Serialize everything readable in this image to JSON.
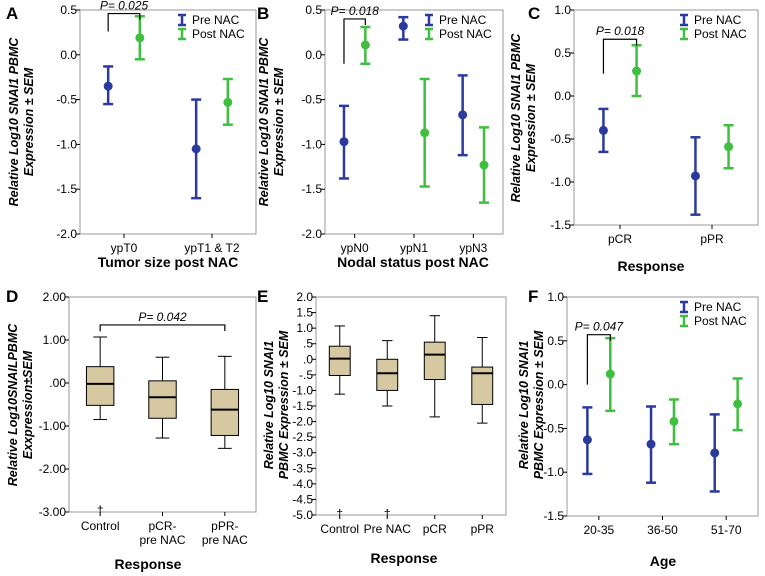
{
  "colors": {
    "pre": "#2b3a9c",
    "post": "#3fbf3f",
    "box": "#d6c9a2",
    "frame": "#999999"
  },
  "chart_data": [
    {
      "panel": "A",
      "type": "errorbar",
      "ylabel": [
        "Relative Log10 SNAI1 PBMC",
        "Expression ± SEM"
      ],
      "xlabel": "Tumor size post NAC",
      "categories": [
        "ypT0",
        "ypT1 & T2"
      ],
      "ylim": [
        -2.0,
        0.5
      ],
      "yticks": [
        0.5,
        0.0,
        -0.5,
        -1.0,
        -1.5,
        -2.0
      ],
      "ytick_labels": [
        "0.5",
        "0.0",
        "-0.5",
        "-1.0",
        "-1.5",
        "-2.0"
      ],
      "legend": [
        "Pre NAC",
        "Post NAC"
      ],
      "legend_position": "top-right",
      "series": [
        {
          "name": "Pre NAC",
          "mean": [
            -0.35,
            -1.05
          ],
          "low": [
            -0.55,
            -1.6
          ],
          "high": [
            -0.13,
            -0.5
          ]
        },
        {
          "name": "Post NAC",
          "mean": [
            0.19,
            -0.53
          ],
          "low": [
            -0.05,
            -0.78
          ],
          "high": [
            0.43,
            -0.27
          ]
        }
      ],
      "annotation": {
        "text": "P= 0.025",
        "from_cat": 0,
        "to_cat": 0,
        "y": 0.46,
        "drop": 0.2
      }
    },
    {
      "panel": "B",
      "type": "errorbar",
      "ylabel": [
        "Relative Log10 SNAI1 PBMC",
        "Expression ± SEM"
      ],
      "xlabel": "Nodal status post NAC",
      "categories": [
        "ypN0",
        "ypN1",
        "ypN3"
      ],
      "ylim": [
        -2.0,
        0.5
      ],
      "yticks": [
        0.5,
        0.0,
        -0.5,
        -1.0,
        -1.5,
        -2.0
      ],
      "ytick_labels": [
        "0.5",
        "0.0",
        "-0.5",
        "-1.0",
        "-1.5",
        "-2.0"
      ],
      "legend": [
        "Pre NAC",
        "Post NAC"
      ],
      "legend_position": "top-right",
      "series": [
        {
          "name": "Pre NAC",
          "mean": [
            -0.97,
            0.32,
            -0.67
          ],
          "low": [
            -1.38,
            0.17,
            -1.12
          ],
          "high": [
            -0.57,
            0.42,
            -0.23
          ]
        },
        {
          "name": "Post NAC",
          "mean": [
            0.11,
            -0.87,
            -1.23
          ],
          "low": [
            -0.1,
            -1.47,
            -1.65
          ],
          "high": [
            0.31,
            -0.27,
            -0.81
          ]
        }
      ],
      "annotation": {
        "text": "P= 0.018",
        "from_cat": 0,
        "to_cat": 0,
        "y": 0.4,
        "drop": 0.5
      }
    },
    {
      "panel": "C",
      "type": "errorbar",
      "ylabel": [
        "Relative Log10 SNAI1 PBMC",
        "Expression ± SEM"
      ],
      "xlabel": "Response",
      "categories": [
        "pCR",
        "pPR"
      ],
      "ylim": [
        -1.5,
        1.0
      ],
      "yticks": [
        1.0,
        0.5,
        0.0,
        -0.5,
        -1.0,
        -1.5
      ],
      "ytick_labels": [
        "1.0",
        "0.5",
        "0.0",
        "-0.5",
        "-1.0",
        "-1.5"
      ],
      "legend": [
        "Pre NAC",
        "Post NAC"
      ],
      "legend_position": "top-right",
      "series": [
        {
          "name": "Pre NAC",
          "mean": [
            -0.4,
            -0.93
          ],
          "low": [
            -0.65,
            -1.38
          ],
          "high": [
            -0.15,
            -0.48
          ]
        },
        {
          "name": "Post NAC",
          "mean": [
            0.29,
            -0.59
          ],
          "low": [
            0.0,
            -0.84
          ],
          "high": [
            0.59,
            -0.34
          ]
        }
      ],
      "annotation": {
        "text": "P= 0.018",
        "from_cat": 0,
        "to_cat": 0,
        "y": 0.66,
        "drop": 0.4
      }
    },
    {
      "panel": "D",
      "type": "boxplot",
      "ylabel": [
        "Relative Log10SNAILPBMC",
        "Exxpression±SEM"
      ],
      "xlabel": "Response",
      "categories": [
        "Control",
        "pCR- pre NAC",
        "pPR- pre NAC"
      ],
      "ylim": [
        -3.0,
        2.0
      ],
      "yticks": [
        2.0,
        1.0,
        0.0,
        -1.0,
        -2.0,
        -3.0
      ],
      "ytick_labels": [
        "2.00",
        "1.00",
        ".00",
        "-1.00",
        "-2.00",
        "-3.00"
      ],
      "boxes": [
        {
          "whisker_low": -0.85,
          "q1": -0.52,
          "median": -0.02,
          "q3": 0.38,
          "whisker_high": 1.07,
          "outliers": [
            -2.95
          ]
        },
        {
          "whisker_low": -1.28,
          "q1": -0.82,
          "median": -0.33,
          "q3": 0.05,
          "whisker_high": 0.6
        },
        {
          "whisker_low": -1.52,
          "q1": -1.22,
          "median": -0.62,
          "q3": -0.15,
          "whisker_high": 0.62
        }
      ],
      "annotation": {
        "text": "P= 0.042",
        "from_cat": 0,
        "to_cat": 2,
        "y": 1.35,
        "drop": 0.15
      }
    },
    {
      "panel": "E",
      "type": "boxplot",
      "ylabel": [
        "Relative Log10 SNAI1",
        "PBMC Expression ± SEM"
      ],
      "xlabel": "Response",
      "categories": [
        "Control",
        "Pre NAC",
        "pCR",
        "pPR"
      ],
      "ylim": [
        -5.0,
        2.0
      ],
      "yticks": [
        2.0,
        1.5,
        1.0,
        0.5,
        0.0,
        -0.5,
        -1.0,
        -1.5,
        -2.0,
        -2.5,
        -3.0,
        -3.5,
        -4.0,
        -4.5,
        -5.0
      ],
      "ytick_labels": [
        "2.0",
        "1.5",
        "1.0",
        ".5",
        ".0",
        "-.5",
        "-1.0",
        "-1.5",
        "-2.0",
        "-2.5",
        "-3.0",
        "-3.5",
        "-4.0",
        "-4.5",
        "-5.0"
      ],
      "boxes": [
        {
          "whisker_low": -1.12,
          "q1": -0.52,
          "median": 0.02,
          "q3": 0.42,
          "whisker_high": 1.07,
          "outliers": [
            -4.95
          ]
        },
        {
          "whisker_low": -1.5,
          "q1": -1.0,
          "median": -0.45,
          "q3": 0.0,
          "whisker_high": 0.6,
          "outliers": [
            -4.95
          ]
        },
        {
          "whisker_low": -1.85,
          "q1": -0.65,
          "median": 0.15,
          "q3": 0.55,
          "whisker_high": 1.4
        },
        {
          "whisker_low": -2.05,
          "q1": -1.45,
          "median": -0.45,
          "q3": -0.25,
          "whisker_high": 0.7
        }
      ]
    },
    {
      "panel": "F",
      "type": "errorbar",
      "ylabel": [
        "Relative Log10 SNAI1",
        "PBMC Expression ± SEM"
      ],
      "xlabel": "Age",
      "categories": [
        "20-35",
        "36-50",
        "51-70"
      ],
      "ylim": [
        -1.5,
        1.0
      ],
      "yticks": [
        1.0,
        0.5,
        0.0,
        -0.5,
        -1.0,
        -1.5
      ],
      "ytick_labels": [
        "1.0",
        "0.5",
        "0.0",
        "-0.5",
        "-1.0",
        "-1.5"
      ],
      "legend": [
        "Pre NAC",
        "Post NAC"
      ],
      "legend_position": "top-right",
      "series": [
        {
          "name": "Pre NAC",
          "mean": [
            -0.63,
            -0.68,
            -0.78
          ],
          "low": [
            -1.02,
            -1.12,
            -1.22
          ],
          "high": [
            -0.26,
            -0.25,
            -0.34
          ]
        },
        {
          "name": "Post NAC",
          "mean": [
            0.12,
            -0.42,
            -0.22
          ],
          "low": [
            -0.3,
            -0.68,
            -0.52
          ],
          "high": [
            0.53,
            -0.17,
            0.07
          ]
        }
      ],
      "annotation": {
        "text": "P= 0.047",
        "from_cat": 0,
        "to_cat": 0,
        "y": 0.57,
        "drop": 0.57
      }
    }
  ]
}
